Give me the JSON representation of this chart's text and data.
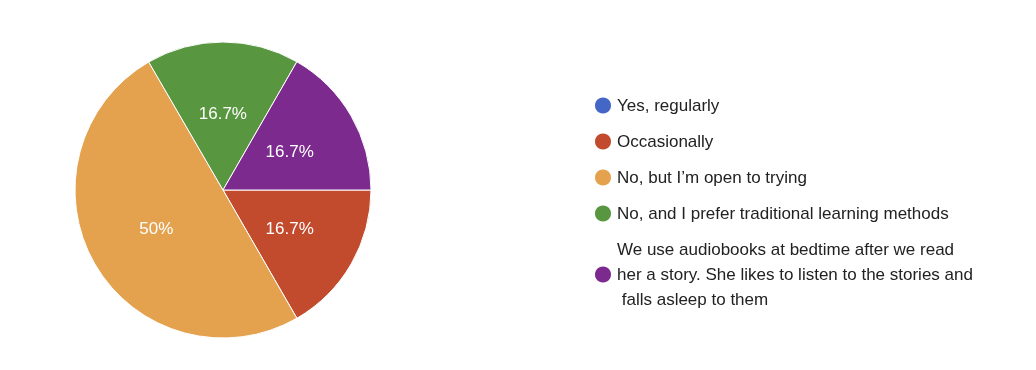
{
  "chart_data": {
    "type": "pie",
    "categories": [
      "Yes, regularly",
      "Occasionally",
      "No, but I’m open to trying",
      "No, and I prefer traditional learning methods",
      "We use audiobooks at bedtime after we read her a story. She likes to listen to the stories and falls asleep to them"
    ],
    "values": [
      0,
      16.7,
      50,
      16.7,
      16.7
    ],
    "value_labels": [
      null,
      "16.7%",
      "50%",
      "16.7%",
      "16.7%"
    ],
    "colors": [
      "#4466c6",
      "#c24a2d",
      "#e4a24f",
      "#58963f",
      "#7d2a8f"
    ],
    "legend": "right"
  }
}
